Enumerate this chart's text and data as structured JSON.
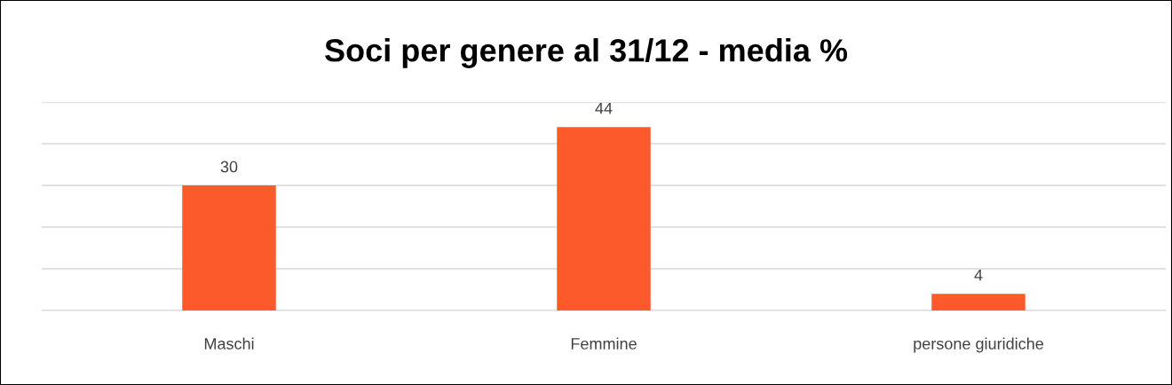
{
  "chart_data": {
    "type": "bar",
    "title": "Soci per genere al 31/12 - media %",
    "categories": [
      "Maschi",
      "Femmine",
      "persone giuridiche"
    ],
    "values": [
      30,
      44,
      4
    ],
    "color": "#fc5a2a",
    "ylim": [
      0,
      50
    ],
    "yticks": [
      {
        "value": 0,
        "label": null
      },
      {
        "value": 10,
        "label": null
      },
      {
        "value": 20,
        "label": null
      },
      {
        "value": 30,
        "label": null
      },
      {
        "value": 40,
        "label": null
      },
      {
        "value": 50,
        "label": null
      }
    ],
    "grid": "y",
    "tick_labels": "x",
    "data_labels": true,
    "legend": false
  }
}
